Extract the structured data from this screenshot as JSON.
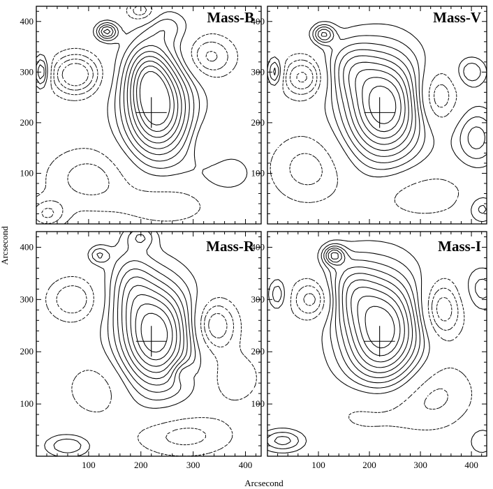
{
  "chart_data": {
    "type": "contour",
    "xlabel": "Arcsecond",
    "ylabel": "Arcsecond",
    "xlim": [
      0,
      430
    ],
    "ylim": [
      0,
      430
    ],
    "xticks": [
      100,
      200,
      300,
      400
    ],
    "yticks": [
      100,
      200,
      300,
      400
    ],
    "legend": "none",
    "grid": false,
    "line_styles": {
      "positive": "solid",
      "negative": "dashed"
    },
    "colors": {
      "line": "#000000",
      "background": "#ffffff"
    },
    "panels": [
      {
        "title": "Mass-B",
        "center_marker": [
          220,
          220
        ],
        "components": [
          {
            "x": 232,
            "y": 230,
            "sx": 45,
            "sy": 70,
            "amp": 1.0
          },
          {
            "x": 210,
            "y": 300,
            "sx": 28,
            "sy": 45,
            "amp": 0.35
          },
          {
            "x": 135,
            "y": 380,
            "sx": 14,
            "sy": 12,
            "amp": 0.55
          },
          {
            "x": 250,
            "y": 390,
            "sx": 28,
            "sy": 22,
            "amp": 0.2
          },
          {
            "x": 75,
            "y": 295,
            "sx": 32,
            "sy": 28,
            "amp": -0.55
          },
          {
            "x": 10,
            "y": 300,
            "sx": 10,
            "sy": 22,
            "amp": 0.45
          },
          {
            "x": 330,
            "y": 330,
            "sx": 35,
            "sy": 30,
            "amp": -0.35
          },
          {
            "x": 330,
            "y": 160,
            "sx": 22,
            "sy": 30,
            "amp": -0.15
          },
          {
            "x": 360,
            "y": 100,
            "sx": 40,
            "sy": 30,
            "amp": 0.18
          },
          {
            "x": 100,
            "y": 90,
            "sx": 60,
            "sy": 45,
            "amp": -0.25
          },
          {
            "x": 250,
            "y": 40,
            "sx": 60,
            "sy": 30,
            "amp": -0.2
          },
          {
            "x": 200,
            "y": 420,
            "sx": 20,
            "sy": 15,
            "amp": -0.3
          },
          {
            "x": 20,
            "y": 20,
            "sx": 25,
            "sy": 20,
            "amp": -0.3
          }
        ]
      },
      {
        "title": "Mass-V",
        "center_marker": [
          220,
          220
        ],
        "components": [
          {
            "x": 228,
            "y": 232,
            "sx": 55,
            "sy": 75,
            "amp": 1.0
          },
          {
            "x": 160,
            "y": 310,
            "sx": 35,
            "sy": 40,
            "amp": 0.3
          },
          {
            "x": 110,
            "y": 375,
            "sx": 15,
            "sy": 13,
            "amp": 0.5
          },
          {
            "x": 15,
            "y": 300,
            "sx": 10,
            "sy": 20,
            "amp": 0.4
          },
          {
            "x": 70,
            "y": 290,
            "sx": 30,
            "sy": 28,
            "amp": -0.45
          },
          {
            "x": 330,
            "y": 250,
            "sx": 30,
            "sy": 40,
            "amp": -0.4
          },
          {
            "x": 410,
            "y": 170,
            "sx": 30,
            "sy": 40,
            "amp": 0.35
          },
          {
            "x": 400,
            "y": 300,
            "sx": 20,
            "sy": 20,
            "amp": 0.3
          },
          {
            "x": 80,
            "y": 110,
            "sx": 55,
            "sy": 50,
            "amp": -0.25
          },
          {
            "x": 300,
            "y": 60,
            "sx": 70,
            "sy": 35,
            "amp": -0.2
          },
          {
            "x": 420,
            "y": 30,
            "sx": 20,
            "sy": 20,
            "amp": 0.25
          }
        ]
      },
      {
        "title": "Mass-R",
        "center_marker": [
          220,
          220
        ],
        "components": [
          {
            "x": 228,
            "y": 232,
            "sx": 50,
            "sy": 72,
            "amp": 1.0
          },
          {
            "x": 180,
            "y": 330,
            "sx": 30,
            "sy": 50,
            "amp": 0.3
          },
          {
            "x": 120,
            "y": 385,
            "sx": 14,
            "sy": 12,
            "amp": 0.3
          },
          {
            "x": 200,
            "y": 420,
            "sx": 20,
            "sy": 15,
            "amp": 0.25
          },
          {
            "x": 340,
            "y": 250,
            "sx": 30,
            "sy": 35,
            "amp": -0.45
          },
          {
            "x": 70,
            "y": 300,
            "sx": 35,
            "sy": 30,
            "amp": -0.3
          },
          {
            "x": 120,
            "y": 130,
            "sx": 45,
            "sy": 40,
            "amp": -0.2
          },
          {
            "x": 280,
            "y": 40,
            "sx": 70,
            "sy": 30,
            "amp": -0.25
          },
          {
            "x": 380,
            "y": 150,
            "sx": 35,
            "sy": 35,
            "amp": -0.2
          },
          {
            "x": 60,
            "y": 20,
            "sx": 30,
            "sy": 15,
            "amp": 0.3
          },
          {
            "x": 280,
            "y": 160,
            "sx": 15,
            "sy": 15,
            "amp": -0.2
          }
        ]
      },
      {
        "title": "Mass-I",
        "center_marker": [
          220,
          220
        ],
        "components": [
          {
            "x": 225,
            "y": 240,
            "sx": 55,
            "sy": 78,
            "amp": 1.0
          },
          {
            "x": 160,
            "y": 320,
            "sx": 35,
            "sy": 45,
            "amp": 0.35
          },
          {
            "x": 130,
            "y": 385,
            "sx": 15,
            "sy": 13,
            "amp": 0.55
          },
          {
            "x": 20,
            "y": 310,
            "sx": 12,
            "sy": 20,
            "amp": 0.3
          },
          {
            "x": 90,
            "y": 300,
            "sx": 30,
            "sy": 28,
            "amp": -0.4
          },
          {
            "x": 340,
            "y": 280,
            "sx": 30,
            "sy": 40,
            "amp": -0.45
          },
          {
            "x": 320,
            "y": 120,
            "sx": 60,
            "sy": 50,
            "amp": -0.25
          },
          {
            "x": 420,
            "y": 320,
            "sx": 25,
            "sy": 30,
            "amp": 0.25
          },
          {
            "x": 30,
            "y": 30,
            "sx": 30,
            "sy": 15,
            "amp": 0.35
          },
          {
            "x": 420,
            "y": 30,
            "sx": 20,
            "sy": 20,
            "amp": 0.2
          },
          {
            "x": 200,
            "y": 90,
            "sx": 60,
            "sy": 40,
            "amp": -0.2
          }
        ]
      }
    ],
    "contour_levels": [
      -0.4,
      -0.3,
      -0.2,
      -0.1,
      0.1,
      0.2,
      0.3,
      0.4,
      0.5,
      0.6,
      0.7,
      0.8,
      0.9
    ]
  }
}
